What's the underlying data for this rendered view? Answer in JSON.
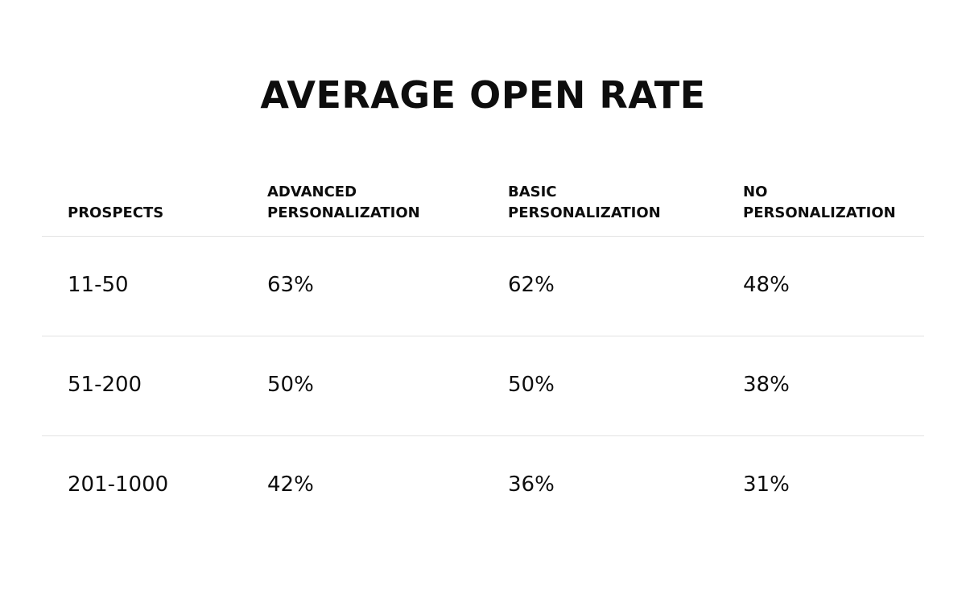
{
  "chart_data": {
    "type": "table",
    "title": "AVERAGE OPEN RATE",
    "columns": [
      [
        "PROSPECTS"
      ],
      [
        "ADVANCED",
        "PERSONALIZATION"
      ],
      [
        "BASIC",
        "PERSONALIZATION"
      ],
      [
        "NO",
        "PERSONALIZATION"
      ]
    ],
    "rows": [
      [
        "11-50",
        "63%",
        "62%",
        "48%"
      ],
      [
        "51-200",
        "50%",
        "50%",
        "38%"
      ],
      [
        "201-1000",
        "42%",
        "36%",
        "31%"
      ]
    ]
  }
}
